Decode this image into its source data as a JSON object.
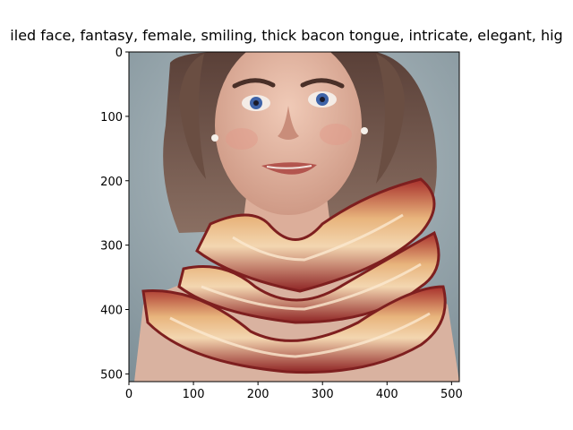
{
  "figure": {
    "title": "iled face, fantasy, female, smiling, thick bacon tongue, intricate, elegant, hig",
    "image": {
      "description_icon": "portrait-image",
      "palette": {
        "background": "#8e9ea6",
        "hair": "#6e5448",
        "skin": "#e3b8a4",
        "bacon_red": "#9c2b2a",
        "bacon_fat": "#e6b27a",
        "eyes": "#3e63a8"
      }
    },
    "x_axis": {
      "range": [
        0,
        512
      ],
      "ticks": [
        "0",
        "100",
        "200",
        "300",
        "400",
        "500"
      ],
      "tick_values": [
        0,
        100,
        200,
        300,
        400,
        500
      ]
    },
    "y_axis": {
      "range": [
        0,
        512
      ],
      "inverted": true,
      "ticks": [
        "0",
        "100",
        "200",
        "300",
        "400",
        "500"
      ],
      "tick_values": [
        0,
        100,
        200,
        300,
        400,
        500
      ]
    }
  }
}
